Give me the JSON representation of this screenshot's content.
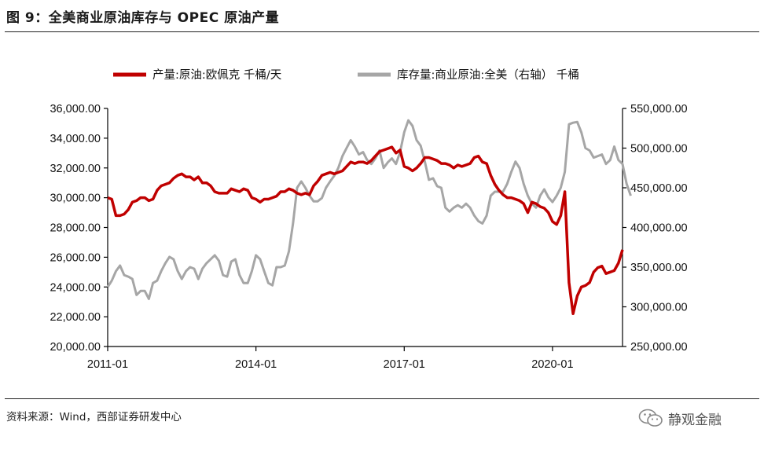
{
  "header": {
    "title": "图 9：全美商业原油库存与 OPEC 原油产量"
  },
  "footer": {
    "source": "资料来源：Wind，西部证券研发中心",
    "brand": "静观金融"
  },
  "chart_data": {
    "type": "line",
    "legend": {
      "placement": "top",
      "entries": [
        "产量:原油:欧佩克 千桶/天",
        "库存量:商业原油:全美（右轴） 千桶"
      ]
    },
    "x_ticks": [
      "2011-01",
      "2014-01",
      "2017-01",
      "2020-01"
    ],
    "x_range": [
      "2011-01",
      "2021-06"
    ],
    "y_left": {
      "range": [
        20000,
        36000
      ],
      "ticks": [
        "20,000.00",
        "22,000.00",
        "24,000.00",
        "26,000.00",
        "28,000.00",
        "30,000.00",
        "32,000.00",
        "34,000.00",
        "36,000.00"
      ]
    },
    "y_right": {
      "range": [
        250000,
        550000
      ],
      "ticks": [
        "250,000.00",
        "300,000.00",
        "350,000.00",
        "400,000.00",
        "450,000.00",
        "500,000.00",
        "550,000.00"
      ]
    },
    "grid": false,
    "colors": {
      "production": "#c00000",
      "inventory": "#a6a6a6"
    },
    "series": [
      {
        "name": "产量:原油:欧佩克 千桶/天",
        "axis": "left",
        "points": [
          [
            "2011-01",
            30000
          ],
          [
            "2011-02",
            29900
          ],
          [
            "2011-03",
            28800
          ],
          [
            "2011-04",
            28800
          ],
          [
            "2011-05",
            28900
          ],
          [
            "2011-06",
            29200
          ],
          [
            "2011-07",
            29700
          ],
          [
            "2011-08",
            29800
          ],
          [
            "2011-09",
            30000
          ],
          [
            "2011-10",
            30000
          ],
          [
            "2011-11",
            29800
          ],
          [
            "2011-12",
            29900
          ],
          [
            "2012-01",
            30500
          ],
          [
            "2012-02",
            30800
          ],
          [
            "2012-03",
            30900
          ],
          [
            "2012-04",
            31000
          ],
          [
            "2012-05",
            31300
          ],
          [
            "2012-06",
            31500
          ],
          [
            "2012-07",
            31600
          ],
          [
            "2012-08",
            31400
          ],
          [
            "2012-09",
            31400
          ],
          [
            "2012-10",
            31200
          ],
          [
            "2012-11",
            31400
          ],
          [
            "2012-12",
            31000
          ],
          [
            "2013-01",
            31000
          ],
          [
            "2013-02",
            30800
          ],
          [
            "2013-03",
            30400
          ],
          [
            "2013-04",
            30300
          ],
          [
            "2013-05",
            30300
          ],
          [
            "2013-06",
            30300
          ],
          [
            "2013-07",
            30600
          ],
          [
            "2013-08",
            30500
          ],
          [
            "2013-09",
            30400
          ],
          [
            "2013-10",
            30600
          ],
          [
            "2013-11",
            30500
          ],
          [
            "2013-12",
            30000
          ],
          [
            "2014-01",
            29900
          ],
          [
            "2014-02",
            29700
          ],
          [
            "2014-03",
            29900
          ],
          [
            "2014-04",
            29900
          ],
          [
            "2014-05",
            30000
          ],
          [
            "2014-06",
            30100
          ],
          [
            "2014-07",
            30400
          ],
          [
            "2014-08",
            30400
          ],
          [
            "2014-09",
            30600
          ],
          [
            "2014-10",
            30500
          ],
          [
            "2014-11",
            30300
          ],
          [
            "2014-12",
            30200
          ],
          [
            "2015-01",
            30300
          ],
          [
            "2015-02",
            30200
          ],
          [
            "2015-03",
            30800
          ],
          [
            "2015-04",
            31100
          ],
          [
            "2015-05",
            31500
          ],
          [
            "2015-06",
            31600
          ],
          [
            "2015-07",
            31700
          ],
          [
            "2015-08",
            31600
          ],
          [
            "2015-09",
            31700
          ],
          [
            "2015-10",
            31800
          ],
          [
            "2015-11",
            32100
          ],
          [
            "2015-12",
            32400
          ],
          [
            "2016-01",
            32300
          ],
          [
            "2016-02",
            32400
          ],
          [
            "2016-03",
            32400
          ],
          [
            "2016-04",
            32300
          ],
          [
            "2016-05",
            32500
          ],
          [
            "2016-06",
            32800
          ],
          [
            "2016-07",
            33100
          ],
          [
            "2016-08",
            33200
          ],
          [
            "2016-09",
            33300
          ],
          [
            "2016-10",
            33400
          ],
          [
            "2016-11",
            33000
          ],
          [
            "2016-12",
            33200
          ],
          [
            "2017-01",
            32100
          ],
          [
            "2017-02",
            32000
          ],
          [
            "2017-03",
            31800
          ],
          [
            "2017-04",
            32000
          ],
          [
            "2017-05",
            32300
          ],
          [
            "2017-06",
            32700
          ],
          [
            "2017-07",
            32700
          ],
          [
            "2017-08",
            32600
          ],
          [
            "2017-09",
            32500
          ],
          [
            "2017-10",
            32300
          ],
          [
            "2017-11",
            32300
          ],
          [
            "2017-12",
            32200
          ],
          [
            "2018-01",
            32000
          ],
          [
            "2018-02",
            32200
          ],
          [
            "2018-03",
            32100
          ],
          [
            "2018-04",
            32200
          ],
          [
            "2018-05",
            32300
          ],
          [
            "2018-06",
            32700
          ],
          [
            "2018-07",
            32800
          ],
          [
            "2018-08",
            32400
          ],
          [
            "2018-09",
            32300
          ],
          [
            "2018-10",
            31500
          ],
          [
            "2018-11",
            30900
          ],
          [
            "2018-12",
            30500
          ],
          [
            "2019-01",
            30200
          ],
          [
            "2019-02",
            30000
          ],
          [
            "2019-03",
            30000
          ],
          [
            "2019-04",
            29900
          ],
          [
            "2019-05",
            29800
          ],
          [
            "2019-06",
            29600
          ],
          [
            "2019-07",
            29000
          ],
          [
            "2019-08",
            29700
          ],
          [
            "2019-09",
            29600
          ],
          [
            "2019-10",
            29400
          ],
          [
            "2019-11",
            29300
          ],
          [
            "2019-12",
            29000
          ],
          [
            "2020-01",
            28400
          ],
          [
            "2020-02",
            28200
          ],
          [
            "2020-03",
            28800
          ],
          [
            "2020-04",
            30400
          ],
          [
            "2020-05",
            24300
          ],
          [
            "2020-06",
            22200
          ],
          [
            "2020-07",
            23400
          ],
          [
            "2020-08",
            24000
          ],
          [
            "2020-09",
            24100
          ],
          [
            "2020-10",
            24300
          ],
          [
            "2020-11",
            25000
          ],
          [
            "2020-12",
            25300
          ],
          [
            "2021-01",
            25400
          ],
          [
            "2021-02",
            24900
          ],
          [
            "2021-03",
            25000
          ],
          [
            "2021-04",
            25100
          ],
          [
            "2021-05",
            25600
          ],
          [
            "2021-06",
            26500
          ]
        ]
      },
      {
        "name": "库存量:商业原油:全美（右轴） 千桶",
        "axis": "right",
        "points": [
          [
            "2011-01",
            325000
          ],
          [
            "2011-02",
            333000
          ],
          [
            "2011-03",
            345000
          ],
          [
            "2011-04",
            352000
          ],
          [
            "2011-05",
            340000
          ],
          [
            "2011-06",
            338000
          ],
          [
            "2011-07",
            335000
          ],
          [
            "2011-08",
            315000
          ],
          [
            "2011-09",
            320000
          ],
          [
            "2011-10",
            320000
          ],
          [
            "2011-11",
            310000
          ],
          [
            "2011-12",
            330000
          ],
          [
            "2012-01",
            333000
          ],
          [
            "2012-02",
            345000
          ],
          [
            "2012-03",
            355000
          ],
          [
            "2012-04",
            363000
          ],
          [
            "2012-05",
            360000
          ],
          [
            "2012-06",
            345000
          ],
          [
            "2012-07",
            335000
          ],
          [
            "2012-08",
            345000
          ],
          [
            "2012-09",
            350000
          ],
          [
            "2012-10",
            348000
          ],
          [
            "2012-11",
            335000
          ],
          [
            "2012-12",
            348000
          ],
          [
            "2013-01",
            355000
          ],
          [
            "2013-02",
            360000
          ],
          [
            "2013-03",
            365000
          ],
          [
            "2013-04",
            358000
          ],
          [
            "2013-05",
            340000
          ],
          [
            "2013-06",
            338000
          ],
          [
            "2013-07",
            357000
          ],
          [
            "2013-08",
            360000
          ],
          [
            "2013-09",
            340000
          ],
          [
            "2013-10",
            330000
          ],
          [
            "2013-11",
            330000
          ],
          [
            "2013-12",
            345000
          ],
          [
            "2014-01",
            365000
          ],
          [
            "2014-02",
            360000
          ],
          [
            "2014-03",
            345000
          ],
          [
            "2014-04",
            330000
          ],
          [
            "2014-05",
            327000
          ],
          [
            "2014-06",
            350000
          ],
          [
            "2014-07",
            350000
          ],
          [
            "2014-08",
            352000
          ],
          [
            "2014-09",
            370000
          ],
          [
            "2014-10",
            405000
          ],
          [
            "2014-11",
            450000
          ],
          [
            "2014-12",
            458000
          ],
          [
            "2015-01",
            450000
          ],
          [
            "2015-02",
            440000
          ],
          [
            "2015-03",
            433000
          ],
          [
            "2015-04",
            433000
          ],
          [
            "2015-05",
            437000
          ],
          [
            "2015-06",
            450000
          ],
          [
            "2015-07",
            458000
          ],
          [
            "2015-08",
            465000
          ],
          [
            "2015-09",
            475000
          ],
          [
            "2015-10",
            490000
          ],
          [
            "2015-11",
            500000
          ],
          [
            "2015-12",
            510000
          ],
          [
            "2016-01",
            502000
          ],
          [
            "2016-02",
            492000
          ],
          [
            "2016-03",
            495000
          ],
          [
            "2016-04",
            485000
          ],
          [
            "2016-05",
            480000
          ],
          [
            "2016-06",
            487000
          ],
          [
            "2016-07",
            497000
          ],
          [
            "2016-08",
            475000
          ],
          [
            "2016-09",
            482000
          ],
          [
            "2016-10",
            487000
          ],
          [
            "2016-11",
            480000
          ],
          [
            "2016-12",
            495000
          ],
          [
            "2017-01",
            520000
          ],
          [
            "2017-02",
            535000
          ],
          [
            "2017-03",
            528000
          ],
          [
            "2017-04",
            510000
          ],
          [
            "2017-05",
            503000
          ],
          [
            "2017-06",
            483000
          ],
          [
            "2017-07",
            460000
          ],
          [
            "2017-08",
            462000
          ],
          [
            "2017-09",
            452000
          ],
          [
            "2017-10",
            450000
          ],
          [
            "2017-11",
            425000
          ],
          [
            "2017-12",
            420000
          ],
          [
            "2018-01",
            425000
          ],
          [
            "2018-02",
            428000
          ],
          [
            "2018-03",
            425000
          ],
          [
            "2018-04",
            430000
          ],
          [
            "2018-05",
            425000
          ],
          [
            "2018-06",
            415000
          ],
          [
            "2018-07",
            408000
          ],
          [
            "2018-08",
            405000
          ],
          [
            "2018-09",
            415000
          ],
          [
            "2018-10",
            440000
          ],
          [
            "2018-11",
            445000
          ],
          [
            "2018-12",
            445000
          ],
          [
            "2019-01",
            445000
          ],
          [
            "2019-02",
            455000
          ],
          [
            "2019-03",
            470000
          ],
          [
            "2019-04",
            483000
          ],
          [
            "2019-05",
            475000
          ],
          [
            "2019-06",
            455000
          ],
          [
            "2019-07",
            440000
          ],
          [
            "2019-08",
            430000
          ],
          [
            "2019-09",
            425000
          ],
          [
            "2019-10",
            440000
          ],
          [
            "2019-11",
            448000
          ],
          [
            "2019-12",
            438000
          ],
          [
            "2020-01",
            432000
          ],
          [
            "2020-02",
            440000
          ],
          [
            "2020-03",
            450000
          ],
          [
            "2020-04",
            470000
          ],
          [
            "2020-05",
            530000
          ],
          [
            "2020-06",
            532000
          ],
          [
            "2020-07",
            533000
          ],
          [
            "2020-08",
            520000
          ],
          [
            "2020-09",
            500000
          ],
          [
            "2020-10",
            497000
          ],
          [
            "2020-11",
            488000
          ],
          [
            "2020-12",
            490000
          ],
          [
            "2021-01",
            492000
          ],
          [
            "2021-02",
            480000
          ],
          [
            "2021-03",
            485000
          ],
          [
            "2021-04",
            502000
          ],
          [
            "2021-05",
            485000
          ],
          [
            "2021-06",
            480000
          ],
          [
            "2021-07",
            455000
          ],
          [
            "2021-08",
            440000
          ]
        ]
      }
    ]
  }
}
